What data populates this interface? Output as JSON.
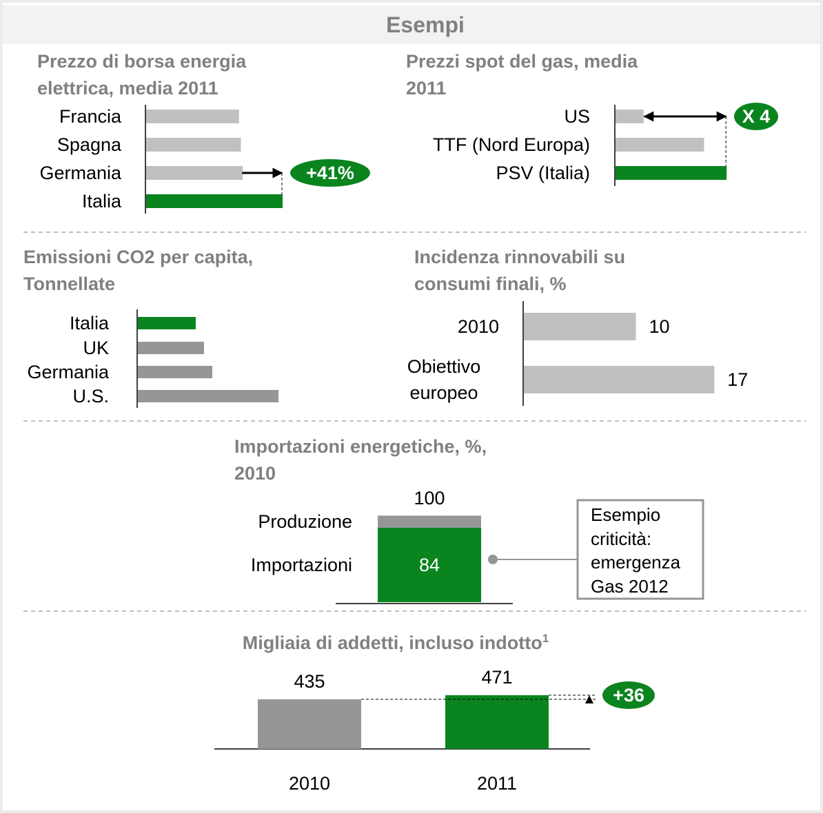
{
  "header": {
    "title": "Esempi"
  },
  "chart_data": [
    {
      "type": "hbar",
      "title": "Prezzo di borsa energia elettrica, media 2011",
      "categories": [
        "Francia",
        "Spagna",
        "Germania",
        "Italia"
      ],
      "values": [
        49,
        50,
        51,
        72
      ],
      "colors": [
        "#c0c0c0",
        "#c0c0c0",
        "#c0c0c0",
        "#0a841e"
      ],
      "annotation": "+41%"
    },
    {
      "type": "hbar",
      "title": "Prezzi spot  del gas, media 2011",
      "categories": [
        "US",
        "TTF (Nord Europa)",
        "PSV (Italia)"
      ],
      "values": [
        4,
        12.6,
        15.8
      ],
      "colors": [
        "#c0c0c0",
        "#c0c0c0",
        "#0a841e"
      ],
      "annotation": "X 4"
    },
    {
      "type": "hbar",
      "title": "Emissioni CO2 per capita, Tonnellate",
      "categories": [
        "Italia",
        "UK",
        "Germania",
        "U.S."
      ],
      "values": [
        7,
        8,
        9,
        17
      ],
      "colors": [
        "#0a841e",
        "#969696",
        "#969696",
        "#969696"
      ]
    },
    {
      "type": "hbar",
      "title": "Incidenza rinnovabili su consumi finali, %",
      "categories": [
        "2010",
        "Obiettivo europeo"
      ],
      "values": [
        10,
        17
      ],
      "colors": [
        "#c0c0c0",
        "#c0c0c0"
      ]
    },
    {
      "type": "stacked",
      "title": "Importazioni energetiche, %, 2010",
      "series": [
        {
          "name": "Importazioni",
          "color": "#0a841e",
          "values": [
            84
          ]
        },
        {
          "name": "Produzione",
          "color": "#969696",
          "values": [
            16
          ]
        }
      ],
      "total": 100,
      "annotation": "Esempio criticità: emergenza Gas 2012"
    },
    {
      "type": "vbar",
      "title": "Migliaia di addetti, incluso indotto",
      "title_footnote": "1",
      "categories": [
        "2010",
        "2011"
      ],
      "values": [
        435,
        471
      ],
      "colors": [
        "#969696",
        "#0a841e"
      ],
      "annotation": "+36"
    }
  ]
}
